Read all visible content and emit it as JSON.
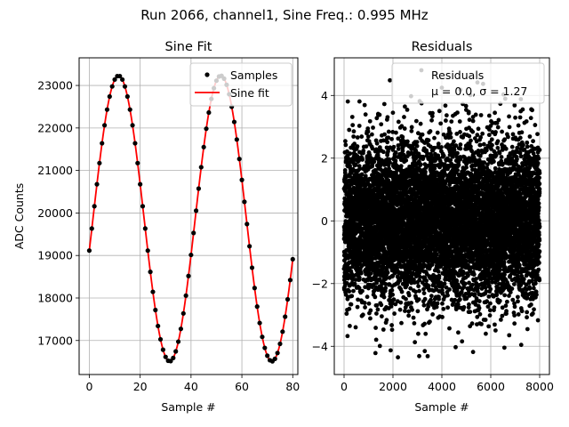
{
  "figure": {
    "suptitle": "Run 2066, channel1, Sine Freq.: 0.995 MHz"
  },
  "chart_data": [
    {
      "type": "scatter",
      "title": "Sine Fit",
      "xlabel": "Sample #",
      "ylabel": "ADC Counts",
      "xlim": [
        -4,
        82
      ],
      "ylim": [
        16200,
        23650
      ],
      "xticks": [
        0,
        20,
        40,
        60,
        80
      ],
      "xtick_labels": [
        "0",
        "20",
        "40",
        "60",
        "80"
      ],
      "yticks": [
        17000,
        18000,
        19000,
        20000,
        21000,
        22000,
        23000
      ],
      "ytick_labels": [
        "17000",
        "18000",
        "19000",
        "20000",
        "21000",
        "22000",
        "23000"
      ],
      "grid": true,
      "legend_position": "top-right",
      "series": [
        {
          "name": "Samples",
          "style": "markers",
          "color": "#000000",
          "sampling": "every sample, x = 0 to 80",
          "x": [
            0,
            80
          ],
          "model": {
            "offset": 19870,
            "amplitude": 3360,
            "period": 40.2,
            "phase_peak_x": 11.5
          }
        },
        {
          "name": "Sine fit",
          "style": "line",
          "color": "#ff0000",
          "x": [
            0,
            80
          ],
          "model": {
            "offset": 19870,
            "amplitude": 3360,
            "period": 40.2,
            "phase_peak_x": 11.5
          }
        }
      ]
    },
    {
      "type": "scatter",
      "title": "Residuals",
      "xlabel": "Sample #",
      "ylabel": "",
      "xlim": [
        -400,
        8400
      ],
      "ylim": [
        -4.9,
        5.2
      ],
      "xticks": [
        0,
        2000,
        4000,
        6000,
        8000
      ],
      "xtick_labels": [
        "0",
        "2000",
        "4000",
        "6000",
        "8000"
      ],
      "yticks": [
        -4,
        -2,
        0,
        2,
        4
      ],
      "ytick_labels": [
        "−4",
        "−2",
        "0",
        "2",
        "4"
      ],
      "grid": true,
      "legend_position": "top-right",
      "series": [
        {
          "name": "Residuals",
          "style": "markers",
          "color": "#000000",
          "sample_count": 8000,
          "x": [
            0,
            8000
          ],
          "mean": 0.0,
          "std": 1.27
        }
      ],
      "legend_label_line1": "Residuals",
      "legend_label_line2": "μ = 0.0, σ = 1.27"
    }
  ]
}
